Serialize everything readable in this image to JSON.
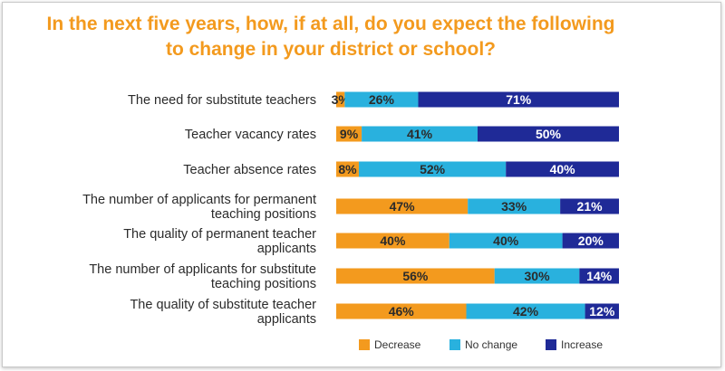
{
  "title_lines": [
    "In the next five years, how, if at all, do you expect the following",
    "to change in your district or school?"
  ],
  "colors": {
    "title": "#f39a1e",
    "decrease": "#f39a1e",
    "no_change": "#29b1de",
    "increase": "#1f2a97"
  },
  "chart_data": {
    "type": "bar",
    "orientation": "horizontal",
    "stacked": true,
    "title": "In the next five years, how, if at all, do you expect the following to change in your district or school?",
    "categories": [
      [
        "The need for substitute teachers"
      ],
      [
        "Teacher vacancy rates"
      ],
      [
        "Teacher absence rates"
      ],
      [
        "The number of applicants for permanent",
        "teaching positions"
      ],
      [
        "The quality of permanent teacher",
        "applicants"
      ],
      [
        "The number of applicants for substitute",
        "teaching positions"
      ],
      [
        "The quality of substitute teacher",
        "applicants"
      ]
    ],
    "series": [
      {
        "name": "Decrease",
        "values": [
          3,
          9,
          8,
          47,
          40,
          56,
          46
        ],
        "labels": [
          "3%",
          "9%",
          "8%",
          "47%",
          "40%",
          "56%",
          "46%"
        ]
      },
      {
        "name": "No change",
        "values": [
          26,
          41,
          52,
          33,
          40,
          30,
          42
        ],
        "labels": [
          "26%",
          "41%",
          "52%",
          "33%",
          "40%",
          "30%",
          "42%"
        ]
      },
      {
        "name": "Increase",
        "values": [
          71,
          50,
          40,
          21,
          20,
          14,
          12
        ],
        "labels": [
          "71%",
          "50%",
          "40%",
          "21%",
          "20%",
          "14%",
          "12%"
        ]
      }
    ],
    "xlim": [
      0,
      100
    ],
    "legend_position": "bottom"
  }
}
